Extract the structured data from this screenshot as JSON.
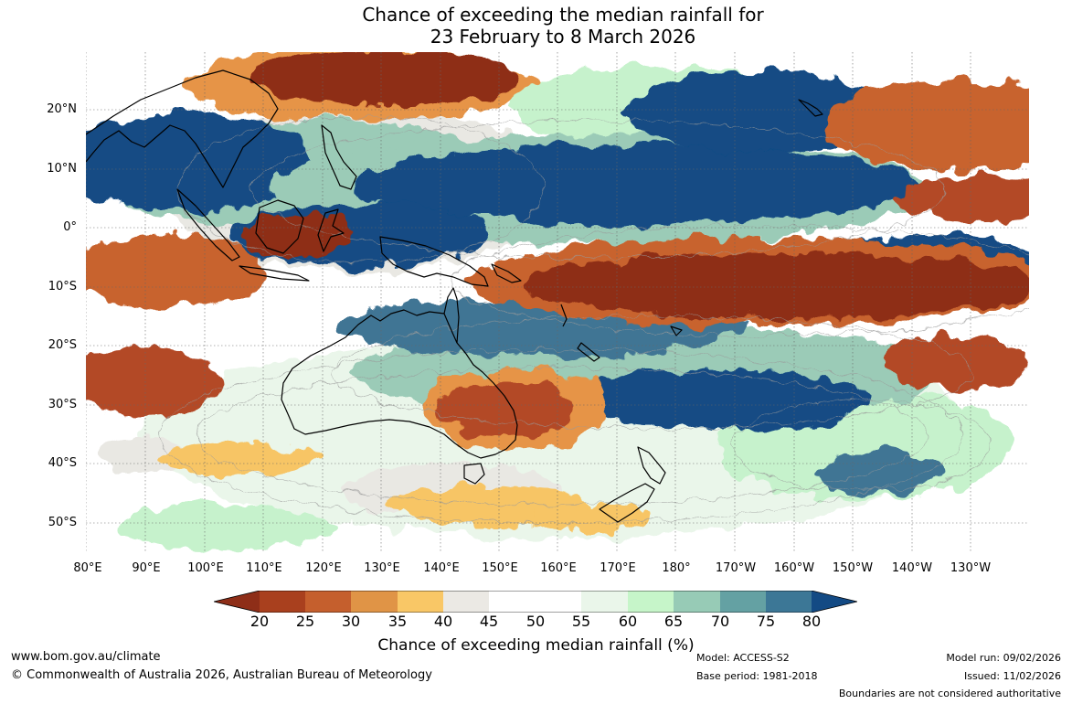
{
  "title": {
    "line1": "Chance of exceeding the median rainfall for",
    "line2": "23 February to 8 March 2026"
  },
  "map": {
    "lat_labels": [
      "20°N",
      "10°N",
      "0°",
      "10°S",
      "20°S",
      "30°S",
      "40°S",
      "50°S"
    ],
    "lon_labels": [
      "80°E",
      "90°E",
      "100°E",
      "110°E",
      "120°E",
      "130°E",
      "140°E",
      "150°E",
      "160°E",
      "170°E",
      "180°",
      "170°W",
      "160°W",
      "150°W",
      "140°W",
      "130°W"
    ],
    "colors": {
      "very_dry": "#8e2e18",
      "dry": "#b34a26",
      "orange": "#c8642e",
      "light_orange": "#e69446",
      "pale_orange": "#f7c565",
      "grey_neutral": "#e9e8e3",
      "white": "#ffffff",
      "pale_green": "#e9f7ea",
      "light_green": "#c6f2cc",
      "teal_light": "#9bcbb7",
      "teal": "#64a3a2",
      "steel_blue": "#3f7594",
      "dark_blue": "#124c84",
      "coastline": "#000000"
    }
  },
  "legend": {
    "ticks": [
      "20",
      "25",
      "30",
      "35",
      "40",
      "45",
      "50",
      "55",
      "60",
      "65",
      "70",
      "75",
      "80"
    ],
    "caption": "Chance of exceeding median rainfall (%)",
    "bins": [
      {
        "range": "<20",
        "color": "#8e2e18"
      },
      {
        "range": "20-25",
        "color": "#a9401e"
      },
      {
        "range": "25-30",
        "color": "#c55f2d"
      },
      {
        "range": "30-35",
        "color": "#e09446"
      },
      {
        "range": "35-40",
        "color": "#f9c766"
      },
      {
        "range": "40-45",
        "color": "#ebe9e4"
      },
      {
        "range": "45-50",
        "color": "#ffffff"
      },
      {
        "range": "50-55",
        "color": "#ffffff"
      },
      {
        "range": "55-60",
        "color": "#eaf6ea"
      },
      {
        "range": "60-65",
        "color": "#c6f5c9"
      },
      {
        "range": "65-70",
        "color": "#97cbb6"
      },
      {
        "range": "70-75",
        "color": "#64a1a3"
      },
      {
        "range": "75-80",
        "color": "#3c7796"
      },
      {
        "range": ">80",
        "color": "#134a84"
      }
    ]
  },
  "footer": {
    "website": "www.bom.gov.au/climate",
    "copyright": "© Commonwealth of Australia 2026, Australian Bureau of Meteorology",
    "model": "Model: ACCESS-S2",
    "base_period": "Base period: 1981-2018",
    "model_run": "Model run: 09/02/2026",
    "issued": "Issued: 11/02/2026",
    "disclaimer": "Boundaries are not considered authoritative"
  }
}
